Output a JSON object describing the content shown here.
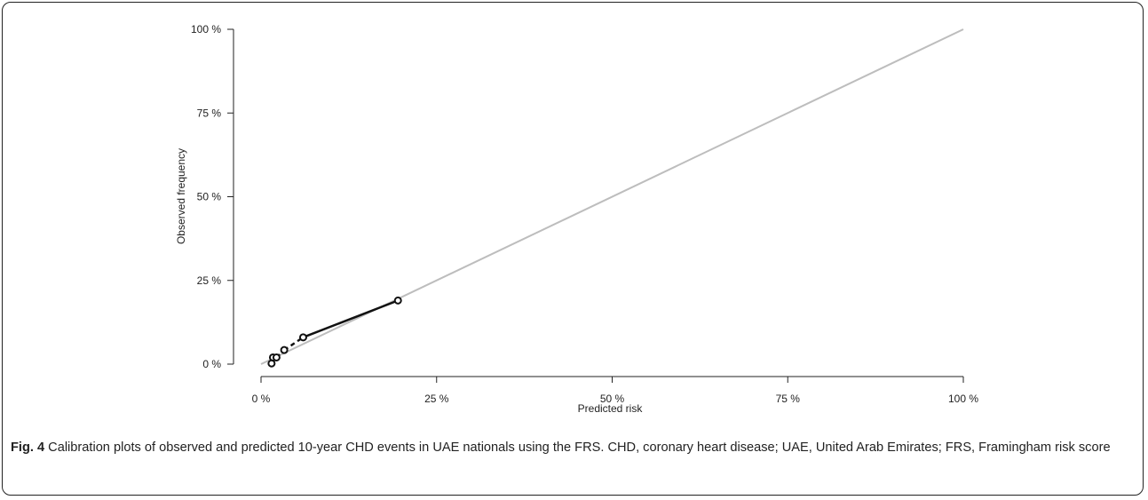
{
  "chart_data": {
    "type": "line",
    "xlabel": "Predicted risk",
    "ylabel": "Observed frequency",
    "xlim": [
      0,
      100
    ],
    "ylim": [
      0,
      100
    ],
    "x_ticks": [
      "0 %",
      "25 %",
      "50 %",
      "75 %",
      "100 %"
    ],
    "y_ticks": [
      "0 %",
      "25 %",
      "50 %",
      "75 %",
      "100 %"
    ],
    "tick_values": [
      0,
      25,
      50,
      75,
      100
    ],
    "grid": false,
    "series": [
      {
        "style": "reference-diagonal",
        "color": "#bdbdbd",
        "x": [
          0,
          100
        ],
        "y": [
          0,
          100
        ]
      },
      {
        "style": "calibration-points",
        "color": "#111111",
        "x": [
          1.5,
          1.7,
          2.2,
          3.3,
          6.0,
          19.5
        ],
        "y": [
          0.2,
          2.0,
          2.0,
          4.2,
          8.0,
          19.0
        ]
      }
    ]
  },
  "caption": {
    "label": "Fig. 4",
    "text": " Calibration plots of observed and predicted 10-year CHD events in UAE nationals using the FRS. CHD, coronary heart disease; UAE, United Arab Emirates; FRS, Framingham risk score"
  }
}
